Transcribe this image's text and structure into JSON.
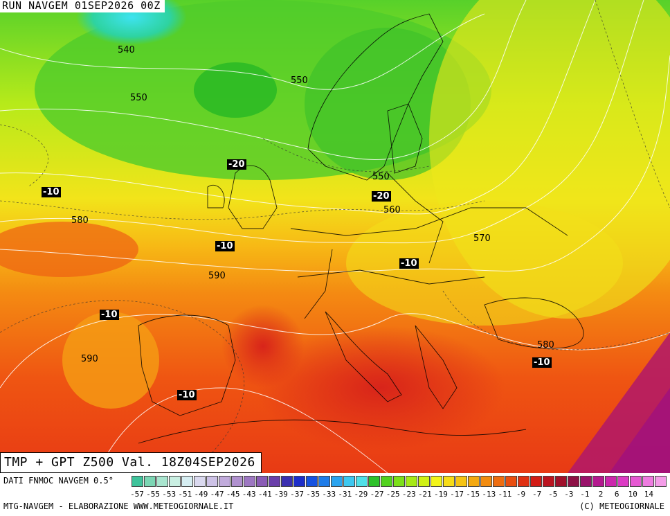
{
  "header": {
    "run_title": "RUN NAVGEM 01SEP2026 00Z",
    "valid_title": "TMP + GPT Z500 Val. 18Z04SEP2026"
  },
  "map": {
    "height_labels": [
      "540",
      "550",
      "550",
      "550",
      "560",
      "570",
      "580",
      "580",
      "590",
      "590"
    ],
    "temperature_labels": [
      "-20",
      "-10",
      "-20",
      "-10",
      "-10",
      "-10",
      "-10",
      "-10"
    ]
  },
  "legend": {
    "source": "DATI FNMOC NAVGEM 0.5°",
    "footer_left": "MTG-NAVGEM - ELABORAZIONE WWW.METEOGIORNALE.IT",
    "footer_right": "(C) METEOGIORNALE",
    "tick_labels": [
      "-57",
      "-55",
      "-53",
      "-51",
      "-49",
      "-47",
      "-45",
      "-43",
      "-41",
      "-39",
      "-37",
      "-35",
      "-33",
      "-31",
      "-29",
      "-27",
      "-25",
      "-23",
      "-21",
      "-19",
      "-17",
      "-15",
      "-13",
      "-11",
      "-9",
      "-7",
      "-5",
      "-3",
      "-1",
      "2",
      "6",
      "10",
      "14"
    ],
    "colors": [
      "#3fc39b",
      "#7cd6b4",
      "#a9e5cf",
      "#c9efe2",
      "#d6eef2",
      "#dad9ef",
      "#cdc2e6",
      "#c1abdc",
      "#b091cf",
      "#9d77c2",
      "#8a5cb5",
      "#6a3faa",
      "#3a2fb0",
      "#1d2ec9",
      "#1652e0",
      "#1f7ce8",
      "#2ba4ef",
      "#3ec8f0",
      "#50e0e8",
      "#2dc12a",
      "#52d21f",
      "#7ce01a",
      "#a7ea17",
      "#d0f114",
      "#f3f51a",
      "#f7dc17",
      "#f6c414",
      "#f4a911",
      "#f28c10",
      "#ee6d10",
      "#e94e10",
      "#e03012",
      "#d21c16",
      "#bb1420",
      "#a0102b",
      "#8d1045",
      "#9a136b",
      "#b4198f",
      "#cc27ad",
      "#dc3bc4",
      "#e658d3",
      "#ee7ce0",
      "#f49de8"
    ]
  }
}
